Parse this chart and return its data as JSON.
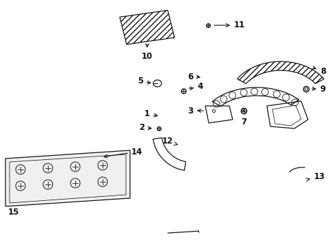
{
  "bg": "#ffffff",
  "lc": "#111111",
  "fs": 8.5,
  "lw": 0.9,
  "figsize": [
    4.89,
    3.6
  ],
  "dpi": 100
}
